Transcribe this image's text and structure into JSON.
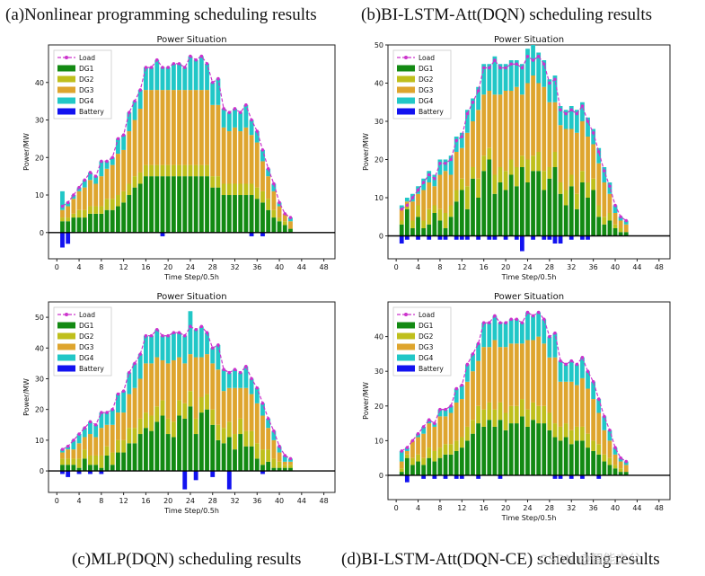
{
  "captions": {
    "a": "(a)Nonlinear programming scheduling results",
    "b": "(b)BI-LSTM-Att(DQN) scheduling results",
    "c": "(c)MLP(DQN) scheduling results",
    "d": "(d)BI-LSTM-Att(DQN-CE) scheduling results"
  },
  "watermark": "CSDN @智能之父",
  "colors": {
    "load": "#cc33cc",
    "dg1": "#138a13",
    "dg2": "#bfbf1c",
    "dg3": "#dea52e",
    "dg4": "#21c7c7",
    "battery": "#1212f0"
  },
  "chart_data": [
    {
      "id": "a",
      "type": "bar",
      "stacked": true,
      "title": "Power Situation",
      "xlabel": "Time Step/0.5h",
      "ylabel": "Power/MW",
      "xticks": [
        "0",
        "4",
        "8",
        "12",
        "16",
        "20",
        "24",
        "28",
        "32",
        "36",
        "40",
        "44",
        "48"
      ],
      "yticks": [
        "0",
        "10",
        "20",
        "30",
        "40"
      ],
      "ylim": [
        -7,
        50
      ],
      "xlim": [
        -1.5,
        50
      ],
      "legend": [
        "Load",
        "DG1",
        "DG2",
        "DG3",
        "DG4",
        "Battery"
      ],
      "load": [
        7,
        8,
        10,
        12,
        14,
        16,
        15,
        19,
        19,
        20,
        25,
        26,
        32,
        35,
        38,
        44,
        44,
        46,
        44,
        44,
        45,
        45,
        44,
        47,
        46,
        47,
        45,
        40,
        41,
        33,
        32,
        33,
        32,
        34,
        30,
        27,
        22,
        17,
        13,
        8,
        5,
        4
      ],
      "dg1": [
        3,
        3,
        4,
        4,
        4,
        5,
        5,
        5,
        6,
        6,
        7,
        8,
        10,
        12,
        13,
        15,
        15,
        15,
        15,
        15,
        15,
        15,
        15,
        15,
        15,
        15,
        15,
        12,
        12,
        10,
        10,
        10,
        10,
        10,
        10,
        9,
        8,
        6,
        4,
        3,
        2,
        1
      ],
      "dg2": [
        1,
        1,
        1,
        2,
        2,
        2,
        2,
        2,
        3,
        3,
        3,
        3,
        3,
        3,
        3,
        3,
        3,
        3,
        3,
        3,
        3,
        3,
        3,
        3,
        3,
        3,
        3,
        3,
        3,
        3,
        3,
        3,
        3,
        3,
        3,
        3,
        3,
        3,
        2,
        1,
        1,
        0
      ],
      "dg3": [
        2,
        3,
        4,
        5,
        6,
        7,
        6,
        8,
        8,
        9,
        11,
        11,
        14,
        15,
        17,
        20,
        20,
        20,
        20,
        20,
        20,
        20,
        20,
        20,
        20,
        20,
        20,
        19,
        19,
        15,
        14,
        15,
        14,
        15,
        13,
        12,
        8,
        6,
        5,
        3,
        2,
        2
      ],
      "dg4": [
        5,
        1,
        1,
        1,
        2,
        2,
        2,
        4,
        2,
        2,
        4,
        4,
        5,
        5,
        5,
        6,
        6,
        8,
        6,
        6,
        7,
        7,
        6,
        9,
        8,
        9,
        7,
        6,
        7,
        5,
        5,
        5,
        5,
        6,
        4,
        3,
        3,
        2,
        2,
        1,
        0,
        1
      ],
      "battery": [
        -4,
        -3,
        0,
        0,
        0,
        0,
        0,
        0,
        0,
        0,
        0,
        0,
        0,
        0,
        0,
        0,
        0,
        0,
        -1,
        0,
        0,
        0,
        0,
        0,
        0,
        0,
        0,
        0,
        0,
        0,
        0,
        0,
        0,
        0,
        -1,
        0,
        -1,
        0,
        0,
        0,
        0,
        0
      ]
    },
    {
      "id": "b",
      "type": "bar",
      "stacked": true,
      "title": "Power Situation",
      "xlabel": "Time Step/0.5h",
      "ylabel": "Power/MW",
      "xticks": [
        "0",
        "4",
        "8",
        "12",
        "16",
        "20",
        "24",
        "28",
        "32",
        "36",
        "40",
        "44",
        "48"
      ],
      "yticks": [
        "0",
        "10",
        "20",
        "30",
        "40",
        "50"
      ],
      "ylim": [
        -6,
        50
      ],
      "xlim": [
        -1.5,
        50
      ],
      "legend": [
        "Load",
        "DG1",
        "DG2",
        "DG3",
        "DG4",
        "Battery"
      ],
      "load": [
        7,
        8,
        10,
        12,
        14,
        16,
        15,
        19,
        19,
        20,
        25,
        26,
        32,
        35,
        38,
        44,
        44,
        46,
        44,
        44,
        45,
        45,
        44,
        47,
        46,
        47,
        45,
        40,
        41,
        33,
        32,
        33,
        32,
        34,
        30,
        27,
        22,
        17,
        13,
        8,
        5,
        4
      ],
      "dg1": [
        3,
        7,
        2,
        5,
        2,
        3,
        6,
        4,
        2,
        5,
        9,
        12,
        7,
        15,
        10,
        17,
        20,
        11,
        14,
        12,
        16,
        13,
        18,
        14,
        17,
        17,
        12,
        15,
        18,
        11,
        8,
        13,
        7,
        14,
        10,
        12,
        5,
        3,
        4,
        2,
        1,
        1
      ],
      "dg2": [
        1,
        1,
        2,
        3,
        2,
        4,
        2,
        3,
        4,
        3,
        3,
        3,
        6,
        3,
        5,
        4,
        3,
        5,
        4,
        5,
        4,
        5,
        3,
        6,
        4,
        5,
        5,
        3,
        4,
        3,
        4,
        3,
        4,
        3,
        4,
        3,
        3,
        2,
        2,
        1,
        1,
        0
      ],
      "dg3": [
        3,
        1,
        5,
        3,
        8,
        7,
        5,
        9,
        11,
        8,
        10,
        8,
        14,
        12,
        18,
        16,
        15,
        21,
        19,
        21,
        18,
        21,
        16,
        20,
        21,
        18,
        22,
        17,
        13,
        15,
        16,
        12,
        16,
        13,
        12,
        9,
        11,
        9,
        5,
        3,
        2,
        2
      ],
      "dg4": [
        1,
        1,
        2,
        2,
        3,
        3,
        3,
        4,
        3,
        5,
        4,
        4,
        6,
        6,
        6,
        8,
        7,
        10,
        8,
        7,
        8,
        7,
        8,
        9,
        8,
        8,
        7,
        6,
        7,
        5,
        5,
        6,
        6,
        5,
        5,
        4,
        4,
        4,
        3,
        2,
        1,
        1
      ],
      "battery": [
        -2,
        -1,
        0,
        -1,
        0,
        -1,
        0,
        -1,
        -1,
        0,
        -1,
        -1,
        -1,
        0,
        -1,
        0,
        -1,
        -1,
        0,
        -1,
        0,
        -1,
        -4,
        0,
        -1,
        0,
        -1,
        -1,
        -2,
        -2,
        0,
        -1,
        0,
        -1,
        -1,
        0,
        0,
        0,
        0,
        0,
        0,
        0
      ]
    },
    {
      "id": "c",
      "type": "bar",
      "stacked": true,
      "title": "Power Situation",
      "xlabel": "Time Step/0.5h",
      "ylabel": "Power/MW",
      "xticks": [
        "0",
        "4",
        "8",
        "12",
        "16",
        "20",
        "24",
        "28",
        "32",
        "36",
        "40",
        "44",
        "48"
      ],
      "yticks": [
        "0",
        "10",
        "20",
        "30",
        "40",
        "50"
      ],
      "ylim": [
        -7,
        55
      ],
      "xlim": [
        -1.5,
        50
      ],
      "legend": [
        "Load",
        "DG1",
        "DG2",
        "DG3",
        "DG4",
        "Battery"
      ],
      "load": [
        7,
        8,
        10,
        12,
        14,
        16,
        15,
        19,
        19,
        20,
        25,
        26,
        32,
        35,
        38,
        44,
        44,
        46,
        44,
        44,
        45,
        45,
        44,
        47,
        46,
        47,
        45,
        40,
        41,
        33,
        32,
        33,
        32,
        34,
        30,
        27,
        22,
        17,
        13,
        8,
        5,
        4
      ],
      "dg1": [
        2,
        2,
        2,
        1,
        4,
        2,
        2,
        1,
        5,
        2,
        6,
        6,
        9,
        9,
        12,
        14,
        13,
        16,
        18,
        12,
        11,
        18,
        17,
        21,
        12,
        19,
        20,
        15,
        10,
        9,
        11,
        7,
        12,
        8,
        8,
        4,
        2,
        3,
        1,
        1,
        1,
        1
      ],
      "dg2": [
        2,
        2,
        2,
        3,
        3,
        3,
        3,
        4,
        3,
        4,
        4,
        4,
        5,
        5,
        5,
        5,
        5,
        5,
        5,
        5,
        5,
        5,
        5,
        5,
        5,
        5,
        5,
        5,
        5,
        5,
        5,
        5,
        5,
        5,
        5,
        5,
        5,
        4,
        3,
        2,
        1,
        1
      ],
      "dg3": [
        2,
        3,
        3,
        5,
        4,
        7,
        6,
        9,
        7,
        9,
        9,
        9,
        11,
        13,
        13,
        16,
        17,
        16,
        13,
        18,
        20,
        14,
        13,
        12,
        20,
        13,
        13,
        15,
        18,
        12,
        11,
        15,
        10,
        14,
        12,
        13,
        11,
        7,
        6,
        3,
        1,
        1
      ],
      "dg4": [
        1,
        1,
        3,
        3,
        3,
        4,
        4,
        5,
        4,
        5,
        6,
        7,
        7,
        8,
        8,
        9,
        9,
        9,
        8,
        9,
        9,
        8,
        9,
        14,
        9,
        10,
        7,
        5,
        8,
        7,
        5,
        6,
        5,
        7,
        5,
        5,
        4,
        3,
        3,
        2,
        2,
        1
      ],
      "battery": [
        -1,
        -2,
        0,
        -1,
        0,
        -1,
        0,
        -1,
        0,
        0,
        0,
        0,
        0,
        0,
        0,
        0,
        0,
        0,
        0,
        0,
        0,
        0,
        -6,
        0,
        -3,
        0,
        0,
        -2,
        0,
        0,
        -6,
        0,
        0,
        0,
        0,
        0,
        -1,
        0,
        0,
        0,
        0,
        0
      ]
    },
    {
      "id": "d",
      "type": "bar",
      "stacked": true,
      "title": "Power Situation",
      "xlabel": "Time Step/0.5h",
      "ylabel": "Power/MW",
      "xticks": [
        "0",
        "4",
        "8",
        "12",
        "16",
        "20",
        "24",
        "28",
        "32",
        "36",
        "40",
        "44",
        "48"
      ],
      "yticks": [
        "0",
        "10",
        "20",
        "30",
        "40"
      ],
      "ylim": [
        -7,
        50
      ],
      "xlim": [
        -1.5,
        50
      ],
      "legend": [
        "Load",
        "DG1",
        "DG2",
        "DG3",
        "DG4",
        "Battery"
      ],
      "load": [
        7,
        8,
        10,
        12,
        14,
        16,
        15,
        19,
        19,
        20,
        25,
        26,
        32,
        35,
        38,
        44,
        44,
        46,
        44,
        44,
        45,
        45,
        44,
        47,
        46,
        47,
        45,
        40,
        41,
        33,
        32,
        33,
        32,
        34,
        30,
        27,
        22,
        17,
        13,
        8,
        5,
        4
      ],
      "dg1": [
        1,
        5,
        3,
        4,
        3,
        5,
        4,
        5,
        6,
        6,
        7,
        8,
        10,
        12,
        15,
        14,
        16,
        14,
        16,
        13,
        15,
        15,
        17,
        14,
        16,
        15,
        15,
        13,
        11,
        10,
        11,
        9,
        10,
        10,
        8,
        7,
        6,
        4,
        3,
        2,
        1,
        1
      ],
      "dg2": [
        1,
        1,
        2,
        2,
        2,
        3,
        3,
        3,
        3,
        3,
        3,
        3,
        4,
        4,
        5,
        5,
        5,
        5,
        5,
        5,
        5,
        5,
        5,
        5,
        5,
        5,
        5,
        5,
        4,
        4,
        4,
        4,
        4,
        4,
        4,
        3,
        3,
        2,
        2,
        1,
        1,
        0
      ],
      "dg3": [
        2,
        1,
        5,
        5,
        7,
        7,
        7,
        9,
        8,
        9,
        11,
        11,
        13,
        14,
        13,
        18,
        16,
        20,
        16,
        19,
        18,
        18,
        16,
        20,
        18,
        20,
        18,
        16,
        19,
        13,
        12,
        14,
        12,
        14,
        13,
        12,
        9,
        7,
        5,
        3,
        2,
        2
      ],
      "dg4": [
        3,
        1,
        0,
        1,
        2,
        1,
        1,
        2,
        2,
        2,
        4,
        4,
        5,
        5,
        5,
        7,
        7,
        7,
        7,
        7,
        7,
        7,
        6,
        8,
        7,
        7,
        7,
        6,
        7,
        6,
        5,
        6,
        6,
        6,
        5,
        5,
        4,
        4,
        3,
        2,
        1,
        1
      ],
      "battery": [
        0,
        -2,
        0,
        0,
        -1,
        0,
        -1,
        0,
        -1,
        0,
        -1,
        -1,
        0,
        0,
        -1,
        0,
        0,
        0,
        -1,
        0,
        0,
        0,
        0,
        0,
        0,
        0,
        0,
        0,
        -1,
        -1,
        0,
        -1,
        0,
        -1,
        0,
        0,
        -1,
        0,
        0,
        0,
        0,
        0
      ]
    }
  ]
}
